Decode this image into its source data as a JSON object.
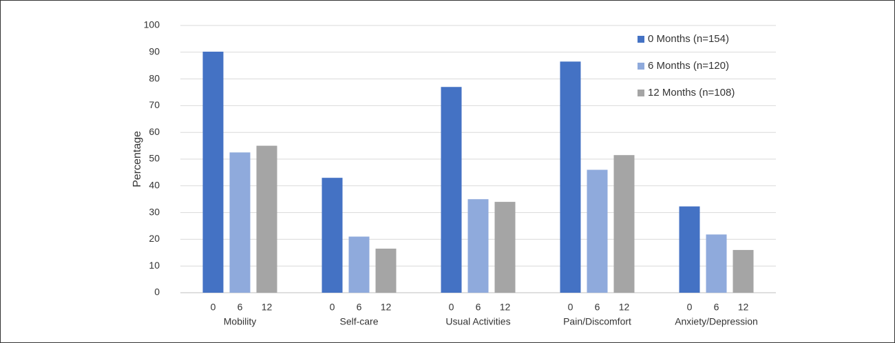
{
  "chart_data": {
    "type": "bar",
    "categories": [
      "Mobility",
      "Self-care",
      "Usual Activities",
      "Pain/Discomfort",
      "Anxiety/Depression"
    ],
    "bar_labels": [
      0,
      6,
      12
    ],
    "y_label": "Percentage",
    "series": [
      {
        "name": "0 Months (n=154)",
        "color": "#4472c4",
        "values": [
          90.2,
          43,
          77,
          86.5,
          32.3
        ]
      },
      {
        "name": "6 Months (n=120)",
        "color": "#8faadc",
        "values": [
          52.5,
          21,
          35,
          46,
          21.8
        ]
      },
      {
        "name": "12 Months (n=108)",
        "color": "#a5a5a5",
        "values": [
          55,
          16.5,
          34,
          51.5,
          16
        ]
      }
    ],
    "ylim": [
      0,
      100
    ],
    "yticks": [
      0,
      10,
      20,
      30,
      40,
      50,
      60,
      70,
      80,
      90,
      100
    ],
    "grid": true,
    "legend": "top-right"
  }
}
